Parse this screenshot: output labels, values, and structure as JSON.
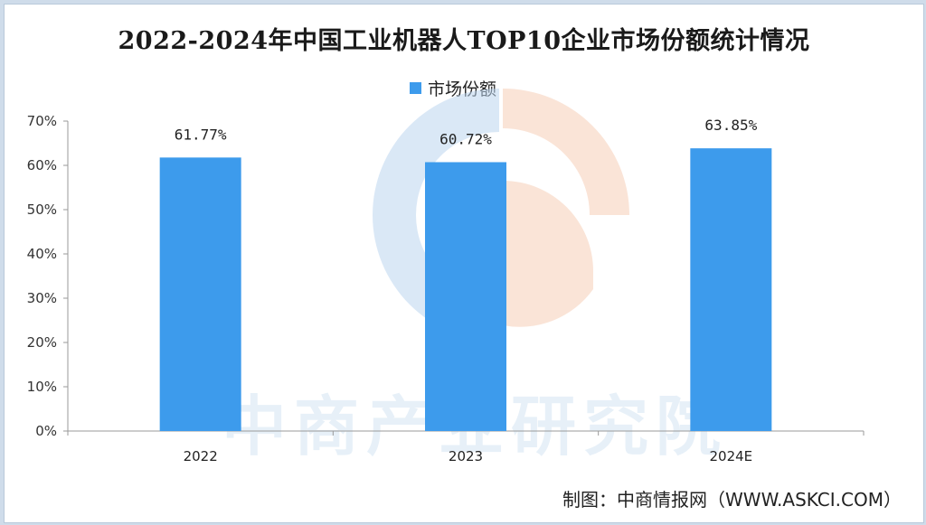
{
  "title": "2022-2024年中国工业机器人TOP10企业市场份额统计情况",
  "source": "制图：中商情报网（WWW.ASKCI.COM）",
  "watermark": "中商产业研究院",
  "colors": {
    "bar": "#3d9bec",
    "axis": "#9a9a9a",
    "logo_blue": "#bcd6ee",
    "logo_orange": "#f6cdb6"
  },
  "chart_data": {
    "type": "bar",
    "categories": [
      "2022",
      "2023",
      "2024E"
    ],
    "series": [
      {
        "name": "市场份额",
        "values": [
          61.77,
          60.72,
          63.85
        ],
        "labels": [
          "61.77%",
          "60.72%",
          "63.85%"
        ]
      }
    ],
    "ylim": [
      0,
      70
    ],
    "yticks": [
      "0%",
      "10%",
      "20%",
      "30%",
      "40%",
      "50%",
      "60%",
      "70%"
    ],
    "legend": "top-center",
    "grid": false
  }
}
